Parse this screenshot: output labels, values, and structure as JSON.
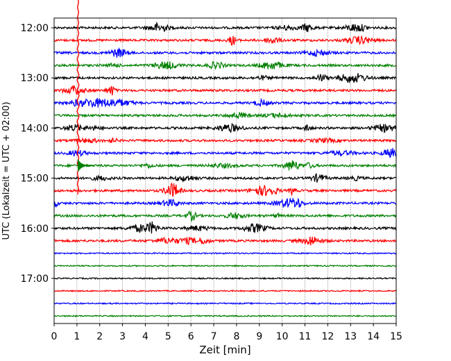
{
  "chart_data": {
    "type": "line",
    "title": "",
    "xlabel": "Zeit  [min]",
    "ylabel": "UTC (Lokalzeit = UTC + 02:00)",
    "xlim": [
      0,
      15
    ],
    "xticks": [
      "0",
      "1",
      "2",
      "3",
      "4",
      "5",
      "6",
      "7",
      "8",
      "9",
      "10",
      "11",
      "12",
      "13",
      "14",
      "15"
    ],
    "ytick_labels": [
      "12:00",
      "13:00",
      "14:00",
      "15:00",
      "16:00",
      "17:00"
    ],
    "ytick_rows": [
      0,
      4,
      8,
      12,
      16,
      20
    ],
    "grid_x": true,
    "grid_style": "dotted",
    "trace_rows": 24,
    "trace_start": "12:00",
    "trace_interval_min": 15,
    "colors": [
      "#000000",
      "#ff0000",
      "#0000ff",
      "#008000"
    ],
    "events": [
      {
        "row": 5,
        "x": 1.05,
        "amplitude_rows": 8.3,
        "label": ""
      }
    ]
  }
}
